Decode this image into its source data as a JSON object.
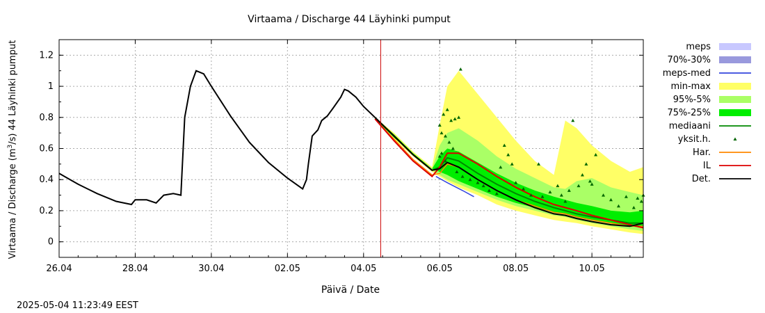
{
  "chart_data": {
    "type": "line",
    "title": "Virtaama / Discharge  44 Läyhinki pumput",
    "xlabel": "Päivä / Date",
    "ylabel_main": "Virtaama / Discharge (m",
    "ylabel_sup": "3",
    "ylabel_tail": "/s)  44 Läyhinki pumput",
    "timestamp": "2025-05-04 11:23:49 EEST",
    "x_range_days": [
      0,
      7.7
    ],
    "ylim": [
      -0.1,
      1.3
    ],
    "grid": true,
    "legend_position": "right",
    "x_ticks": [
      {
        "day": 0,
        "label": "26.04"
      },
      {
        "day": 2,
        "label": "28.04"
      },
      {
        "day": 4,
        "label": "30.04"
      },
      {
        "day": 6,
        "label": "02.05"
      },
      {
        "day": 8,
        "label": "04.05"
      },
      {
        "day": 10,
        "label": "06.05"
      },
      {
        "day": 12,
        "label": "08.05"
      },
      {
        "day": 14,
        "label": "10.05"
      }
    ],
    "y_ticks": [
      {
        "value": 0,
        "label": "0"
      },
      {
        "value": 0.2,
        "label": "0.2"
      },
      {
        "value": 0.4,
        "label": "0.4"
      },
      {
        "value": 0.6,
        "label": "0.6"
      },
      {
        "value": 0.8,
        "label": "0.8"
      },
      {
        "value": 1.0,
        "label": "1"
      },
      {
        "value": 1.2,
        "label": "1.2"
      }
    ],
    "forecast_start_day": 8.45,
    "x_max_day": 15.35,
    "colors": {
      "meps": "#c8c8ff",
      "p70_30": "#9999dd",
      "meps_med": "#3344dd",
      "min_max": "#ffff66",
      "p95_5": "#aaff66",
      "p75_25": "#00ee00",
      "mediaani": "#008800",
      "yksit": "#006600",
      "har": "#ff8800",
      "il": "#dd0000",
      "det": "#000000",
      "now_line": "#cc0000",
      "grid": "#aaaaaa"
    },
    "legend": [
      {
        "key": "meps",
        "label": "meps",
        "style": "box"
      },
      {
        "key": "p70_30",
        "label": "70%-30%",
        "style": "box"
      },
      {
        "key": "meps_med",
        "label": "meps-med",
        "style": "line"
      },
      {
        "key": "min_max",
        "label": "min-max",
        "style": "box"
      },
      {
        "key": "p95_5",
        "label": "95%-5%",
        "style": "box"
      },
      {
        "key": "p75_25",
        "label": "75%-25%",
        "style": "box"
      },
      {
        "key": "mediaani",
        "label": "mediaani",
        "style": "line"
      },
      {
        "key": "yksit",
        "label": "yksit.h.",
        "style": "point"
      },
      {
        "key": "har",
        "label": "Har.",
        "style": "line"
      },
      {
        "key": "il",
        "label": "IL",
        "style": "line"
      },
      {
        "key": "det",
        "label": "Det.",
        "style": "line"
      }
    ],
    "observed": {
      "x": [
        0,
        0.5,
        1.0,
        1.5,
        1.9,
        2.0,
        2.3,
        2.55,
        2.75,
        3.0,
        3.2,
        3.3,
        3.45,
        3.6,
        3.8,
        4.0,
        4.5,
        5.0,
        5.5,
        6.0,
        6.4,
        6.5,
        6.55,
        6.65,
        6.8,
        6.9,
        7.0,
        7.05,
        7.2,
        7.4,
        7.5,
        7.6,
        7.8,
        8.0,
        8.3
      ],
      "y": [
        0.44,
        0.37,
        0.31,
        0.26,
        0.24,
        0.27,
        0.27,
        0.25,
        0.3,
        0.31,
        0.3,
        0.8,
        1.0,
        1.1,
        1.08,
        1.0,
        0.81,
        0.64,
        0.51,
        0.41,
        0.34,
        0.4,
        0.5,
        0.68,
        0.72,
        0.78,
        0.8,
        0.81,
        0.86,
        0.93,
        0.98,
        0.97,
        0.93,
        0.87,
        0.8
      ]
    },
    "forecast_x": [
      8.3,
      8.8,
      9.3,
      9.8,
      10.0,
      10.2,
      10.5,
      11.0,
      11.5,
      12.0,
      12.5,
      13.0,
      13.3,
      13.6,
      14.0,
      14.5,
      15.0,
      15.35
    ],
    "min_max": {
      "lower": [
        0.79,
        0.66,
        0.55,
        0.45,
        0.42,
        0.39,
        0.35,
        0.3,
        0.24,
        0.2,
        0.17,
        0.14,
        0.13,
        0.12,
        0.1,
        0.08,
        0.06,
        0.05
      ],
      "upper": [
        0.8,
        0.7,
        0.58,
        0.48,
        0.75,
        1.0,
        1.1,
        0.95,
        0.8,
        0.65,
        0.52,
        0.43,
        0.78,
        0.73,
        0.62,
        0.52,
        0.45,
        0.48
      ]
    },
    "p95_5": {
      "lower": [
        0.79,
        0.67,
        0.56,
        0.46,
        0.43,
        0.4,
        0.37,
        0.32,
        0.27,
        0.23,
        0.2,
        0.17,
        0.16,
        0.14,
        0.12,
        0.1,
        0.08,
        0.07
      ],
      "upper": [
        0.8,
        0.69,
        0.57,
        0.47,
        0.62,
        0.7,
        0.73,
        0.65,
        0.55,
        0.47,
        0.41,
        0.35,
        0.34,
        0.39,
        0.41,
        0.35,
        0.32,
        0.3
      ]
    },
    "p75_25": {
      "lower": [
        0.79,
        0.67,
        0.56,
        0.47,
        0.45,
        0.43,
        0.39,
        0.34,
        0.29,
        0.25,
        0.22,
        0.19,
        0.18,
        0.16,
        0.14,
        0.12,
        0.1,
        0.09
      ],
      "upper": [
        0.8,
        0.69,
        0.57,
        0.47,
        0.55,
        0.6,
        0.58,
        0.51,
        0.44,
        0.38,
        0.33,
        0.29,
        0.27,
        0.25,
        0.23,
        0.2,
        0.19,
        0.2
      ]
    },
    "mediaani": [
      0.8,
      0.68,
      0.56,
      0.46,
      0.48,
      0.54,
      0.52,
      0.44,
      0.37,
      0.31,
      0.26,
      0.22,
      0.2,
      0.18,
      0.16,
      0.14,
      0.12,
      0.12
    ],
    "har": [
      0.79,
      0.66,
      0.53,
      0.43,
      0.44,
      0.5,
      0.48,
      0.4,
      0.33,
      0.27,
      0.23,
      0.19,
      0.18,
      0.16,
      0.14,
      0.12,
      0.1,
      0.1
    ],
    "il": [
      0.79,
      0.65,
      0.52,
      0.42,
      0.48,
      0.57,
      0.57,
      0.5,
      0.42,
      0.35,
      0.29,
      0.24,
      0.22,
      0.2,
      0.17,
      0.14,
      0.11,
      0.09
    ],
    "det": [
      0.8,
      0.68,
      0.56,
      0.46,
      0.47,
      0.51,
      0.48,
      0.4,
      0.33,
      0.27,
      0.22,
      0.18,
      0.17,
      0.15,
      0.13,
      0.11,
      0.1,
      0.12
    ],
    "meps_med": {
      "x": [
        9.9,
        10.2,
        10.6,
        10.9
      ],
      "y": [
        0.42,
        0.38,
        0.33,
        0.29
      ]
    },
    "yksit_points": [
      [
        10.55,
        1.11
      ],
      [
        10.0,
        0.75
      ],
      [
        10.1,
        0.82
      ],
      [
        10.2,
        0.85
      ],
      [
        10.3,
        0.78
      ],
      [
        10.4,
        0.79
      ],
      [
        10.5,
        0.8
      ],
      [
        10.05,
        0.7
      ],
      [
        10.15,
        0.68
      ],
      [
        10.25,
        0.64
      ],
      [
        10.35,
        0.6
      ],
      [
        10.05,
        0.57
      ],
      [
        10.15,
        0.52
      ],
      [
        10.0,
        0.55
      ],
      [
        10.45,
        0.45
      ],
      [
        10.6,
        0.42
      ],
      [
        10.8,
        0.4
      ],
      [
        11.0,
        0.38
      ],
      [
        11.15,
        0.36
      ],
      [
        11.3,
        0.33
      ],
      [
        11.5,
        0.31
      ],
      [
        11.6,
        0.48
      ],
      [
        11.7,
        0.62
      ],
      [
        11.8,
        0.56
      ],
      [
        11.9,
        0.5
      ],
      [
        12.0,
        0.38
      ],
      [
        12.2,
        0.34
      ],
      [
        12.4,
        0.3
      ],
      [
        12.6,
        0.5
      ],
      [
        12.7,
        0.29
      ],
      [
        12.9,
        0.32
      ],
      [
        13.1,
        0.36
      ],
      [
        13.2,
        0.3
      ],
      [
        13.3,
        0.26
      ],
      [
        13.4,
        0.33
      ],
      [
        13.5,
        0.78
      ],
      [
        13.65,
        0.36
      ],
      [
        13.75,
        0.43
      ],
      [
        13.85,
        0.5
      ],
      [
        13.95,
        0.39
      ],
      [
        14.0,
        0.37
      ],
      [
        14.1,
        0.56
      ],
      [
        14.3,
        0.3
      ],
      [
        14.5,
        0.27
      ],
      [
        14.7,
        0.23
      ],
      [
        14.9,
        0.29
      ],
      [
        15.1,
        0.22
      ],
      [
        15.2,
        0.28
      ],
      [
        15.3,
        0.26
      ],
      [
        15.35,
        0.3
      ]
    ]
  }
}
